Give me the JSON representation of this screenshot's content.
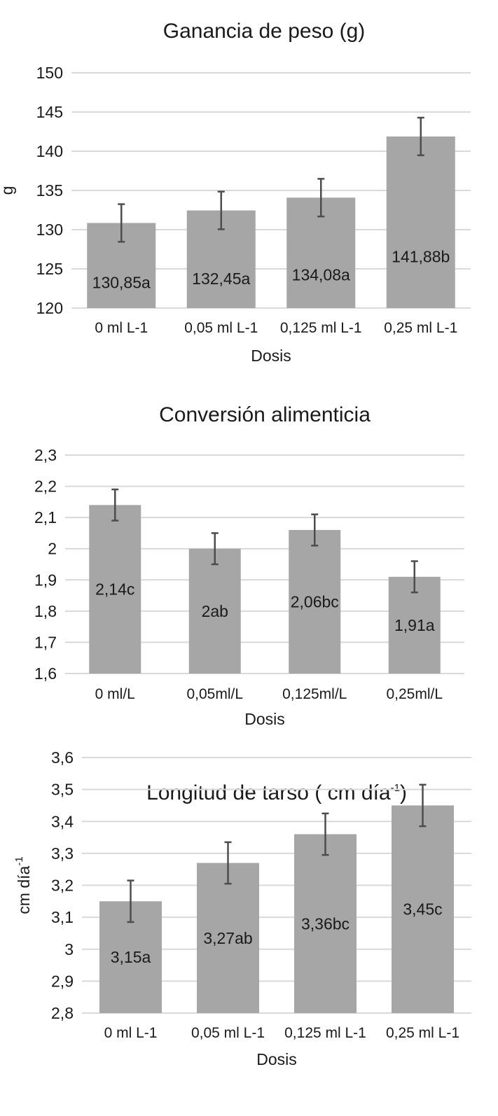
{
  "chart_data": [
    {
      "type": "bar",
      "title": "Ganancia de peso (g)",
      "xlabel": "Dosis",
      "ylabel": "g",
      "ylim": [
        120,
        150
      ],
      "yticks": [
        120,
        125,
        130,
        135,
        140,
        145,
        150
      ],
      "ytick_labels": [
        "120",
        "125",
        "130",
        "135",
        "140",
        "145",
        "150"
      ],
      "categories": [
        "0 ml L-1",
        "0,05 ml L-1",
        "0,125 ml L-1",
        "0,25 ml L-1"
      ],
      "values": [
        130.85,
        132.45,
        134.08,
        141.88
      ],
      "error": [
        2.4,
        2.4,
        2.4,
        2.4
      ],
      "data_labels": [
        "130,85a",
        "132,45a",
        "134,08a",
        "141,88b"
      ],
      "grid": true,
      "bar_color": "#a6a6a6"
    },
    {
      "type": "bar",
      "title": "Conversión alimenticia",
      "xlabel": "Dosis",
      "ylabel": "",
      "ylim": [
        1.6,
        2.3
      ],
      "yticks": [
        1.6,
        1.7,
        1.8,
        1.9,
        2.0,
        2.1,
        2.2,
        2.3
      ],
      "ytick_labels": [
        "1,6",
        "1,7",
        "1,8",
        "1,9",
        "2",
        "2,1",
        "2,2",
        "2,3"
      ],
      "categories": [
        "0 ml/L",
        "0,05ml/L",
        "0,125ml/L",
        "0,25ml/L"
      ],
      "values": [
        2.14,
        2.0,
        2.06,
        1.91
      ],
      "error": [
        0.05,
        0.05,
        0.05,
        0.05
      ],
      "data_labels": [
        "2,14c",
        "2ab",
        "2,06bc",
        "1,91a"
      ],
      "grid": true,
      "bar_color": "#a6a6a6"
    },
    {
      "type": "bar",
      "title": "Longitud de tarso ( cm día",
      "title_sup": "-1",
      "title_suffix": ")",
      "xlabel": "Dosis",
      "ylabel": "cm día",
      "ylabel_sup": "-1",
      "ylim": [
        2.8,
        3.6
      ],
      "yticks": [
        2.8,
        2.9,
        3.0,
        3.1,
        3.2,
        3.3,
        3.4,
        3.5,
        3.6
      ],
      "ytick_labels": [
        "2,8",
        "2,9",
        "3",
        "3,1",
        "3,2",
        "3,3",
        "3,4",
        "3,5",
        "3,6"
      ],
      "categories": [
        "0 ml L-1",
        "0,05 ml L-1",
        "0,125 ml L-1",
        "0,25 ml L-1"
      ],
      "values": [
        3.15,
        3.27,
        3.36,
        3.45
      ],
      "error": [
        0.065,
        0.065,
        0.065,
        0.065
      ],
      "data_labels": [
        "3,15a",
        "3,27ab",
        "3,36bc",
        "3,45c"
      ],
      "grid": true,
      "bar_color": "#a6a6a6"
    }
  ]
}
